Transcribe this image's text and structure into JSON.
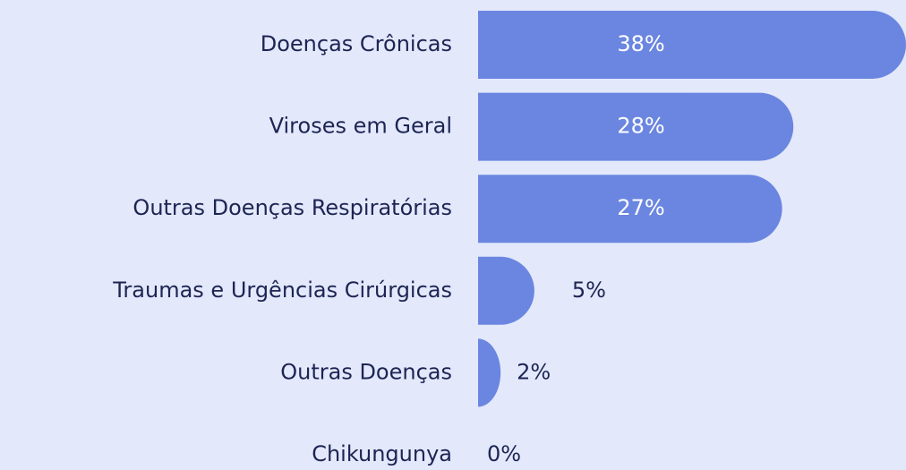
{
  "chart_data": {
    "type": "bar",
    "orientation": "horizontal",
    "categories": [
      "Doenças Crônicas",
      "Viroses em Geral",
      "Outras Doenças Respiratórias",
      "Traumas e Urgências Cirúrgicas",
      "Outras Doenças",
      "Chikungunya"
    ],
    "values": [
      38,
      28,
      27,
      5,
      2,
      0
    ],
    "value_labels": [
      "38%",
      "28%",
      "27%",
      "5%",
      "2%",
      "0%"
    ],
    "color": "#6b86e0"
  }
}
